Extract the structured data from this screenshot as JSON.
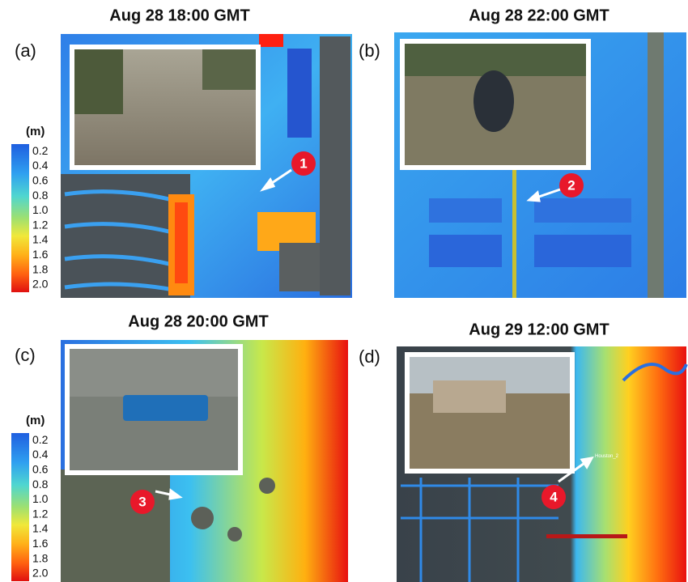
{
  "panels": [
    {
      "label": "(a)",
      "title": "Aug 28 18:00 GMT",
      "marker": "1"
    },
    {
      "label": "(b)",
      "title": "Aug 28 22:00 GMT",
      "marker": "2"
    },
    {
      "label": "(c)",
      "title": "Aug 28 20:00 GMT",
      "marker": "3"
    },
    {
      "label": "(d)",
      "title": "Aug 29 12:00 GMT",
      "marker": "4"
    }
  ],
  "legends": [
    {
      "unit": "(m)",
      "values": [
        "0.2",
        "0.4",
        "0.6",
        "0.8",
        "1.0",
        "1.2",
        "1.4",
        "1.6",
        "1.8",
        "2.0"
      ]
    },
    {
      "unit": "(m)",
      "values": [
        "0.2",
        "0.4",
        "0.6",
        "0.8",
        "1.0",
        "1.2",
        "1.4",
        "1.6",
        "1.8",
        "2.0"
      ]
    }
  ],
  "annotation": "Houston_2"
}
